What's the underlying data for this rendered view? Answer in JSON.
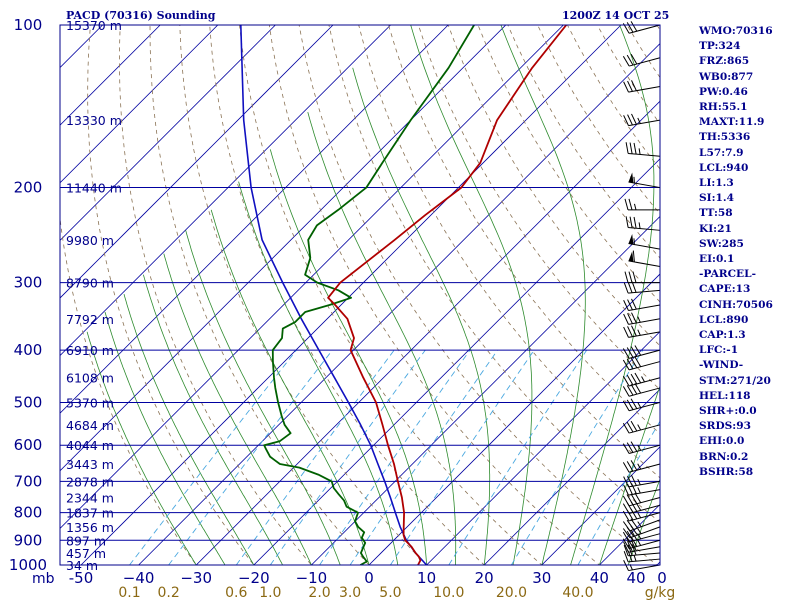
{
  "header": {
    "title": "PACD (70316) Sounding",
    "datetime": "1200Z 14 OCT 25"
  },
  "indices": [
    "WMO:70316",
    "TP:324",
    "FRZ:865",
    "WB0:877",
    "PW:0.46",
    "RH:55.1",
    "MAXT:11.9",
    "TH:5336",
    "L57:7.9",
    "LCL:940",
    "LI:1.3",
    "SI:1.4",
    "TT:58",
    "KI:21",
    "SW:285",
    "EI:0.1",
    "-PARCEL-",
    "CAPE:13",
    "CINH:70506",
    "LCL:890",
    "CAP:1.3",
    "LFC:-1",
    "-WIND-",
    "STM:271/20",
    "HEL:118",
    "SHR+:0.0",
    "SRDS:93",
    "EHI:0.0",
    "BRN:0.2",
    "BSHR:58"
  ],
  "colors": {
    "frame": "#00008b",
    "isobar": "#0000a0",
    "isotherm": "#0000a0",
    "dry_adiabat": "#8b7355",
    "moist_adiabat": "#2e8b2e",
    "mixing_ratio": "#4aa8e0",
    "temperature": "#b00000",
    "dewpoint": "#006000",
    "parcel": "#1010c0",
    "wind": "#000000"
  },
  "chart_data": {
    "type": "skew-t",
    "y_axis_label": "mb",
    "pressure_levels": [
      100,
      200,
      300,
      400,
      500,
      600,
      700,
      800,
      900,
      1000
    ],
    "height_labels": [
      {
        "p": 100,
        "text": "15370 m"
      },
      {
        "p": 150,
        "text": "13330 m"
      },
      {
        "p": 200,
        "text": "11440 m"
      },
      {
        "p": 250,
        "text": "9980 m"
      },
      {
        "p": 300,
        "text": "8790 m"
      },
      {
        "p": 350,
        "text": "7792 m"
      },
      {
        "p": 400,
        "text": "6910 m"
      },
      {
        "p": 450,
        "text": "6108 m"
      },
      {
        "p": 500,
        "text": "5370 m"
      },
      {
        "p": 550,
        "text": "4684 m"
      },
      {
        "p": 600,
        "text": "4044 m"
      },
      {
        "p": 650,
        "text": "3443 m"
      },
      {
        "p": 700,
        "text": "2878 m"
      },
      {
        "p": 750,
        "text": "2344 m"
      },
      {
        "p": 800,
        "text": "1837 m"
      },
      {
        "p": 850,
        "text": "1356 m"
      },
      {
        "p": 900,
        "text": "897 m"
      },
      {
        "p": 950,
        "text": "457 m"
      },
      {
        "p": 1000,
        "text": "34 m"
      }
    ],
    "temperature_ticks": [
      -50,
      -40,
      -30,
      -20,
      -10,
      0,
      10,
      20,
      30,
      40
    ],
    "temperature_tick_labels": [
      "-50",
      "−40",
      "−30",
      "−20",
      "−10",
      "0",
      "10",
      "20",
      "30",
      "40"
    ],
    "mixing_ratio_labels": [
      "0.1",
      "0.2",
      "0.6",
      "1.0",
      "2.0",
      "3.0",
      "5.0",
      "10.0",
      "20.0",
      "40.0",
      "g/kg"
    ],
    "wind_scale_labels": [
      "40",
      "0"
    ],
    "temperature": [
      {
        "p": 1000,
        "t": 8.5
      },
      {
        "p": 980,
        "t": 8.1
      },
      {
        "p": 965,
        "t": 7.2
      },
      {
        "p": 950,
        "t": 6.0
      },
      {
        "p": 925,
        "t": 4.2
      },
      {
        "p": 900,
        "t": 2.0
      },
      {
        "p": 880,
        "t": 0.8
      },
      {
        "p": 850,
        "t": -0.6
      },
      {
        "p": 800,
        "t": -3.0
      },
      {
        "p": 750,
        "t": -6.0
      },
      {
        "p": 700,
        "t": -9.5
      },
      {
        "p": 650,
        "t": -13.2
      },
      {
        "p": 600,
        "t": -17.5
      },
      {
        "p": 550,
        "t": -22.0
      },
      {
        "p": 500,
        "t": -27.0
      },
      {
        "p": 450,
        "t": -33.5
      },
      {
        "p": 400,
        "t": -40.5
      },
      {
        "p": 380,
        "t": -42.0
      },
      {
        "p": 350,
        "t": -46.5
      },
      {
        "p": 330,
        "t": -51.0
      },
      {
        "p": 320,
        "t": -53.5
      },
      {
        "p": 300,
        "t": -54.0
      },
      {
        "p": 250,
        "t": -52.0
      },
      {
        "p": 225,
        "t": -51.0
      },
      {
        "p": 200,
        "t": -49.5
      },
      {
        "p": 180,
        "t": -50.5
      },
      {
        "p": 150,
        "t": -55.0
      },
      {
        "p": 120,
        "t": -58.0
      },
      {
        "p": 100,
        "t": -59.5
      }
    ],
    "dewpoint": [
      {
        "p": 1000,
        "t": -1.5
      },
      {
        "p": 985,
        "t": -1.0
      },
      {
        "p": 965,
        "t": -2.5
      },
      {
        "p": 950,
        "t": -3.5
      },
      {
        "p": 930,
        "t": -4.0
      },
      {
        "p": 910,
        "t": -4.5
      },
      {
        "p": 890,
        "t": -6.0
      },
      {
        "p": 870,
        "t": -6.5
      },
      {
        "p": 850,
        "t": -8.5
      },
      {
        "p": 830,
        "t": -10.0
      },
      {
        "p": 800,
        "t": -11.0
      },
      {
        "p": 780,
        "t": -14.0
      },
      {
        "p": 760,
        "t": -15.5
      },
      {
        "p": 740,
        "t": -17.5
      },
      {
        "p": 720,
        "t": -19.5
      },
      {
        "p": 700,
        "t": -21.0
      },
      {
        "p": 680,
        "t": -24.5
      },
      {
        "p": 660,
        "t": -29.0
      },
      {
        "p": 650,
        "t": -33.0
      },
      {
        "p": 640,
        "t": -34.5
      },
      {
        "p": 630,
        "t": -36.0
      },
      {
        "p": 610,
        "t": -38.0
      },
      {
        "p": 600,
        "t": -39.0
      },
      {
        "p": 590,
        "t": -37.0
      },
      {
        "p": 570,
        "t": -36.5
      },
      {
        "p": 550,
        "t": -39.0
      },
      {
        "p": 530,
        "t": -41.0
      },
      {
        "p": 500,
        "t": -44.0
      },
      {
        "p": 470,
        "t": -47.0
      },
      {
        "p": 450,
        "t": -49.0
      },
      {
        "p": 420,
        "t": -52.0
      },
      {
        "p": 400,
        "t": -54.0
      },
      {
        "p": 380,
        "t": -54.5
      },
      {
        "p": 365,
        "t": -56.0
      },
      {
        "p": 355,
        "t": -55.0
      },
      {
        "p": 340,
        "t": -55.0
      },
      {
        "p": 330,
        "t": -52.0
      },
      {
        "p": 320,
        "t": -49.5
      },
      {
        "p": 310,
        "t": -53.0
      },
      {
        "p": 300,
        "t": -58.0
      },
      {
        "p": 290,
        "t": -61.5
      },
      {
        "p": 270,
        "t": -63.5
      },
      {
        "p": 250,
        "t": -67.0
      },
      {
        "p": 235,
        "t": -68.0
      },
      {
        "p": 220,
        "t": -67.0
      },
      {
        "p": 200,
        "t": -66.0
      },
      {
        "p": 180,
        "t": -67.5
      },
      {
        "p": 150,
        "t": -70.0
      },
      {
        "p": 120,
        "t": -72.5
      },
      {
        "p": 100,
        "t": -75.5
      }
    ],
    "parcel": [
      {
        "p": 1000,
        "t": 10.0
      },
      {
        "p": 950,
        "t": 6.0
      },
      {
        "p": 900,
        "t": 2.2
      },
      {
        "p": 850,
        "t": -1.2
      },
      {
        "p": 800,
        "t": -4.5
      },
      {
        "p": 750,
        "t": -8.0
      },
      {
        "p": 700,
        "t": -11.8
      },
      {
        "p": 650,
        "t": -16.0
      },
      {
        "p": 600,
        "t": -20.5
      },
      {
        "p": 550,
        "t": -25.8
      },
      {
        "p": 500,
        "t": -31.8
      },
      {
        "p": 450,
        "t": -38.5
      },
      {
        "p": 400,
        "t": -46.0
      },
      {
        "p": 350,
        "t": -54.5
      },
      {
        "p": 300,
        "t": -64.0
      },
      {
        "p": 250,
        "t": -75.0
      },
      {
        "p": 200,
        "t": -86.0
      },
      {
        "p": 150,
        "t": -99.0
      },
      {
        "p": 100,
        "t": -116.0
      }
    ],
    "wind_barbs": [
      {
        "p": 1000,
        "dir": 260,
        "spd": 15
      },
      {
        "p": 975,
        "dir": 265,
        "spd": 25
      },
      {
        "p": 950,
        "dir": 265,
        "spd": 30
      },
      {
        "p": 925,
        "dir": 260,
        "spd": 30
      },
      {
        "p": 900,
        "dir": 255,
        "spd": 35
      },
      {
        "p": 875,
        "dir": 255,
        "spd": 35
      },
      {
        "p": 850,
        "dir": 250,
        "spd": 35
      },
      {
        "p": 825,
        "dir": 250,
        "spd": 35
      },
      {
        "p": 800,
        "dir": 255,
        "spd": 35
      },
      {
        "p": 775,
        "dir": 255,
        "spd": 40
      },
      {
        "p": 750,
        "dir": 255,
        "spd": 40
      },
      {
        "p": 725,
        "dir": 260,
        "spd": 35
      },
      {
        "p": 700,
        "dir": 260,
        "spd": 35
      },
      {
        "p": 650,
        "dir": 255,
        "spd": 35
      },
      {
        "p": 600,
        "dir": 255,
        "spd": 35
      },
      {
        "p": 550,
        "dir": 255,
        "spd": 35
      },
      {
        "p": 500,
        "dir": 255,
        "spd": 35
      },
      {
        "p": 470,
        "dir": 255,
        "spd": 40
      },
      {
        "p": 450,
        "dir": 255,
        "spd": 45
      },
      {
        "p": 420,
        "dir": 255,
        "spd": 40
      },
      {
        "p": 400,
        "dir": 255,
        "spd": 40
      },
      {
        "p": 370,
        "dir": 260,
        "spd": 35
      },
      {
        "p": 350,
        "dir": 260,
        "spd": 35
      },
      {
        "p": 330,
        "dir": 260,
        "spd": 30
      },
      {
        "p": 310,
        "dir": 265,
        "spd": 30
      },
      {
        "p": 300,
        "dir": 270,
        "spd": 30
      },
      {
        "p": 280,
        "dir": 280,
        "spd": 60
      },
      {
        "p": 260,
        "dir": 280,
        "spd": 55
      },
      {
        "p": 240,
        "dir": 275,
        "spd": 35
      },
      {
        "p": 220,
        "dir": 270,
        "spd": 25
      },
      {
        "p": 200,
        "dir": 280,
        "spd": 55
      },
      {
        "p": 175,
        "dir": 275,
        "spd": 35
      },
      {
        "p": 150,
        "dir": 260,
        "spd": 35
      },
      {
        "p": 130,
        "dir": 260,
        "spd": 30
      },
      {
        "p": 115,
        "dir": 255,
        "spd": 30
      },
      {
        "p": 100,
        "dir": 255,
        "spd": 30
      }
    ]
  }
}
